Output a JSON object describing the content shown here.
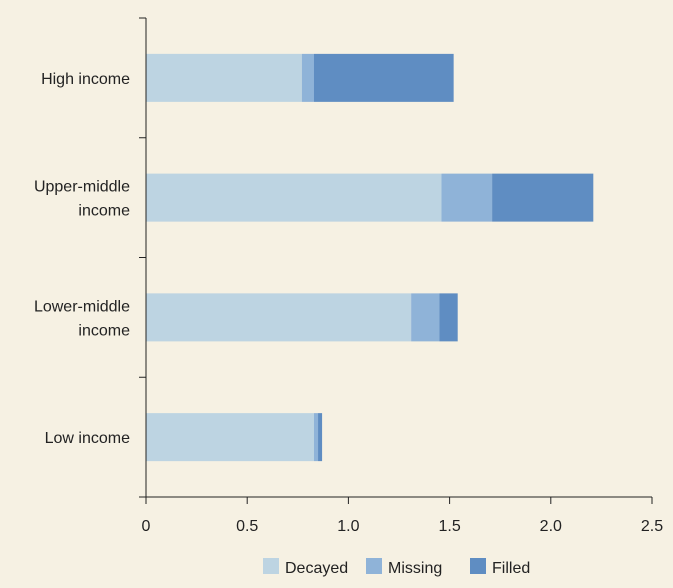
{
  "chart_data": {
    "type": "bar",
    "orientation": "horizontal",
    "stacked": true,
    "categories": [
      "High income",
      "Upper-middle income",
      "Lower-middle income",
      "Low income"
    ],
    "category_label_lines": [
      [
        "High income"
      ],
      [
        "Upper-middle",
        "income"
      ],
      [
        "Lower-middle",
        "income"
      ],
      [
        "Low income"
      ]
    ],
    "series": [
      {
        "name": "Decayed",
        "color": "#bdd4e2",
        "values": [
          0.77,
          1.46,
          1.31,
          0.83
        ]
      },
      {
        "name": "Missing",
        "color": "#8fb3d8",
        "values": [
          0.06,
          0.25,
          0.14,
          0.02
        ]
      },
      {
        "name": "Filled",
        "color": "#5f8dc2",
        "values": [
          0.69,
          0.5,
          0.09,
          0.02
        ]
      }
    ],
    "xlim": [
      0,
      2.5
    ],
    "xticks": [
      "0",
      "0.5",
      "1.0",
      "1.5",
      "2.0",
      "2.5"
    ],
    "xtick_values": [
      0,
      0.5,
      1.0,
      1.5,
      2.0,
      2.5
    ],
    "grid": false,
    "legend_position": "bottom",
    "title": "",
    "xlabel": "",
    "ylabel": ""
  }
}
